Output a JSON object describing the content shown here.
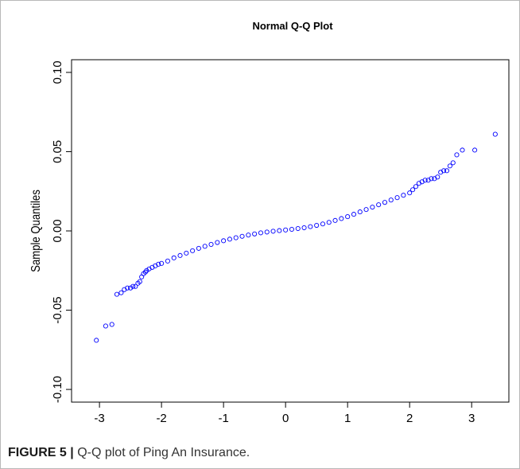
{
  "figure": {
    "label": "FIGURE 5",
    "separator": "|",
    "text": "Q-Q plot of Ping An Insurance."
  },
  "colors": {
    "points": "#0000ff",
    "axis": "#000000",
    "caption_text": "#333333"
  },
  "chart_data": {
    "type": "scatter",
    "title": "Normal Q-Q Plot",
    "xlabel": "",
    "ylabel": "Sample Quantiles",
    "xlim": [
      -3.45,
      3.6
    ],
    "ylim": [
      -0.108,
      0.108
    ],
    "xticks": [
      -3,
      -2,
      -1,
      0,
      1,
      2,
      3
    ],
    "xtick_labels": [
      "-3",
      "-2",
      "-1",
      "0",
      "1",
      "2",
      "3"
    ],
    "yticks": [
      -0.1,
      -0.05,
      0.0,
      0.05,
      0.1
    ],
    "ytick_labels": [
      "-0.10",
      "-0.05",
      "0.00",
      "0.05",
      "0.10"
    ],
    "grid": false,
    "marker": "open-circle",
    "series": [
      {
        "x": [
          -3.05,
          -2.9,
          -2.8,
          -2.72,
          -2.65,
          -2.6,
          -2.55,
          -2.5,
          -2.46,
          -2.42,
          -2.38,
          -2.35,
          -2.32,
          -2.29,
          -2.26,
          -2.24,
          -2.2,
          -2.15,
          -2.1,
          -2.05,
          -2.0,
          -1.9,
          -1.8,
          -1.7,
          -1.6,
          -1.5,
          -1.4,
          -1.3,
          -1.2,
          -1.1,
          -1.0,
          -0.9,
          -0.8,
          -0.7,
          -0.6,
          -0.5,
          -0.4,
          -0.3,
          -0.2,
          -0.1,
          0.0,
          0.1,
          0.2,
          0.3,
          0.4,
          0.5,
          0.6,
          0.7,
          0.8,
          0.9,
          1.0,
          1.1,
          1.2,
          1.3,
          1.4,
          1.5,
          1.6,
          1.7,
          1.8,
          1.9,
          2.0,
          2.05,
          2.1,
          2.15,
          2.2,
          2.25,
          2.3,
          2.35,
          2.4,
          2.45,
          2.5,
          2.55,
          2.6,
          2.65,
          2.7,
          2.76,
          2.85,
          3.05,
          3.38
        ],
        "y": [
          -0.069,
          -0.06,
          -0.059,
          -0.04,
          -0.039,
          -0.037,
          -0.036,
          -0.036,
          -0.035,
          -0.035,
          -0.033,
          -0.032,
          -0.029,
          -0.027,
          -0.026,
          -0.025,
          -0.024,
          -0.023,
          -0.022,
          -0.021,
          -0.0205,
          -0.019,
          -0.017,
          -0.0155,
          -0.014,
          -0.0125,
          -0.011,
          -0.0097,
          -0.0085,
          -0.0073,
          -0.0062,
          -0.0052,
          -0.0043,
          -0.0034,
          -0.0026,
          -0.0019,
          -0.0012,
          -0.0007,
          -0.0002,
          0.0002,
          0.0006,
          0.001,
          0.0015,
          0.002,
          0.0027,
          0.0035,
          0.0044,
          0.0054,
          0.0066,
          0.0078,
          0.009,
          0.0105,
          0.012,
          0.0135,
          0.015,
          0.0165,
          0.018,
          0.0195,
          0.021,
          0.0225,
          0.024,
          0.026,
          0.028,
          0.03,
          0.031,
          0.032,
          0.032,
          0.033,
          0.033,
          0.034,
          0.037,
          0.038,
          0.038,
          0.041,
          0.043,
          0.048,
          0.051,
          0.051,
          0.061
        ]
      }
    ]
  }
}
